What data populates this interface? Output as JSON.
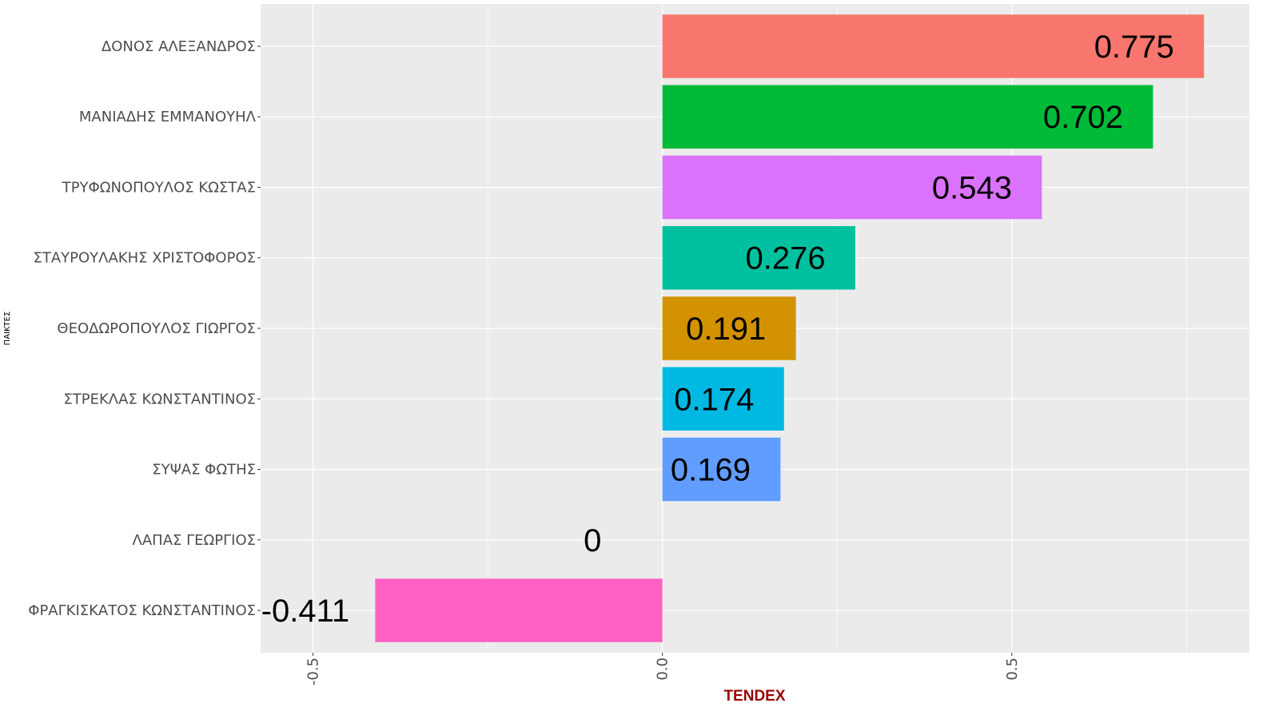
{
  "chart_data": {
    "type": "bar",
    "orientation": "horizontal",
    "xlabel": "TENDEX",
    "ylabel": "ΠΑΙΚΤΕΣ",
    "xlim": [
      -0.575,
      0.84
    ],
    "x_ticks": [
      -0.5,
      0.0,
      0.5
    ],
    "x_tick_labels": [
      "-0.5",
      "0.0",
      "0.5"
    ],
    "grid": true,
    "legend": "none",
    "categories": [
      "ΔΟΝΟΣ ΑΛΕΞΑΝΔΡΟΣ",
      "ΜΑΝΙΑΔΗΣ ΕΜΜΑΝΟΥΗΛ",
      "ΤΡΥΦΩΝΟΠΟΥΛΟΣ ΚΩΣΤΑΣ",
      "ΣΤΑΥΡΟΥΛΑΚΗΣ ΧΡΙΣΤΟΦΟΡΟΣ",
      "ΘΕΟΔΩΡΟΠΟΥΛΟΣ ΓΙΩΡΓΟΣ",
      "ΣΤΡΕΚΛΑΣ ΚΩΝΣΤΑΝΤΙΝΟΣ",
      "ΣΥΨΑΣ ΦΩΤΗΣ",
      "ΛΑΠΑΣ ΓΕΩΡΓΙΟΣ",
      "ΦΡΑΓΚΙΣΚΑΤΟΣ ΚΩΝΣΤΑΝΤΙΝΟΣ"
    ],
    "values": [
      0.775,
      0.702,
      0.543,
      0.276,
      0.191,
      0.174,
      0.169,
      0,
      -0.411
    ],
    "data_labels": [
      "0.775",
      "0.702",
      "0.543",
      "0.276",
      "0.191",
      "0.174",
      "0.169",
      "0",
      "-0.411"
    ],
    "colors": [
      "#F8766D",
      "#00BA38",
      "#DB72FB",
      "#00C19F",
      "#D39200",
      "#00B9E3",
      "#619CFF",
      "#93AA00",
      "#FF61C3"
    ],
    "panel_background": "#EBEBEB",
    "grid_color": "#FFFFFF"
  }
}
